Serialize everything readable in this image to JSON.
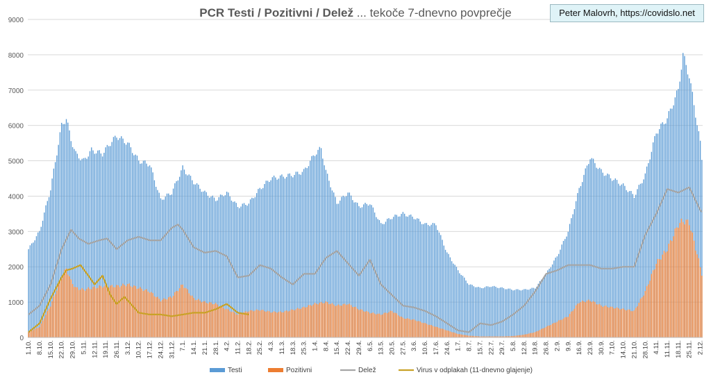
{
  "credit": "Peter Malovrh, https://covidslo.net",
  "chart_data": {
    "type": "bar",
    "title_bold": "PCR Testi / Pozitivni / Delež",
    "title_rest": " ... tekoče 7-dnevno povprečje",
    "xlabel": "",
    "ylabel": "",
    "ylim": [
      0,
      9000
    ],
    "y_ticks": [
      0,
      1000,
      2000,
      3000,
      4000,
      5000,
      6000,
      7000,
      8000,
      9000
    ],
    "x_tick_labels": [
      "1.10.",
      "8.10.",
      "15.10.",
      "22.10.",
      "29.10.",
      "5.11.",
      "12.11.",
      "19.11.",
      "26.11.",
      "3.12.",
      "10.12.",
      "17.12.",
      "24.12.",
      "31.12.",
      "7.1.",
      "14.1.",
      "21.1.",
      "28.1.",
      "4.2.",
      "11.2.",
      "18.2.",
      "25.2.",
      "4.3.",
      "11.3.",
      "18.3.",
      "25.3.",
      "1.4.",
      "8.4.",
      "15.4.",
      "22.4.",
      "29.4.",
      "6.5.",
      "13.5.",
      "20.5.",
      "27.5.",
      "3.6.",
      "10.6.",
      "17.6.",
      "24.6.",
      "1.7.",
      "8.7.",
      "15.7.",
      "22.7.",
      "29.7.",
      "5.8.",
      "12.8.",
      "19.8.",
      "26.8.",
      "2.9.",
      "9.9.",
      "16.9.",
      "23.9.",
      "30.9.",
      "7.10.",
      "14.10.",
      "21.10.",
      "28.10.",
      "4.11.",
      "11.11.",
      "18.11.",
      "25.11.",
      "2.12."
    ],
    "grid": true,
    "legend_position": "bottom",
    "days": 429,
    "series": [
      {
        "name": "Testi",
        "kind": "bar",
        "color": "#5b9bd5",
        "keypoints": [
          [
            0,
            2500
          ],
          [
            7,
            3000
          ],
          [
            14,
            4200
          ],
          [
            21,
            6000
          ],
          [
            24,
            6200
          ],
          [
            27,
            5600
          ],
          [
            30,
            5200
          ],
          [
            35,
            5000
          ],
          [
            40,
            5300
          ],
          [
            47,
            5200
          ],
          [
            52,
            5500
          ],
          [
            56,
            5700
          ],
          [
            63,
            5500
          ],
          [
            70,
            5000
          ],
          [
            77,
            4900
          ],
          [
            84,
            3900
          ],
          [
            91,
            4100
          ],
          [
            98,
            4800
          ],
          [
            105,
            4400
          ],
          [
            112,
            4100
          ],
          [
            119,
            3900
          ],
          [
            126,
            4100
          ],
          [
            133,
            3700
          ],
          [
            140,
            3800
          ],
          [
            147,
            4200
          ],
          [
            154,
            4500
          ],
          [
            161,
            4550
          ],
          [
            168,
            4600
          ],
          [
            175,
            4700
          ],
          [
            182,
            5200
          ],
          [
            186,
            5350
          ],
          [
            189,
            4700
          ],
          [
            196,
            3800
          ],
          [
            203,
            4100
          ],
          [
            210,
            3700
          ],
          [
            217,
            3800
          ],
          [
            224,
            3200
          ],
          [
            231,
            3400
          ],
          [
            238,
            3500
          ],
          [
            245,
            3400
          ],
          [
            252,
            3200
          ],
          [
            259,
            3200
          ],
          [
            266,
            2400
          ],
          [
            273,
            1900
          ],
          [
            280,
            1500
          ],
          [
            287,
            1400
          ],
          [
            294,
            1450
          ],
          [
            301,
            1400
          ],
          [
            308,
            1350
          ],
          [
            315,
            1350
          ],
          [
            322,
            1400
          ],
          [
            329,
            1800
          ],
          [
            336,
            2300
          ],
          [
            343,
            3000
          ],
          [
            350,
            4200
          ],
          [
            357,
            5100
          ],
          [
            364,
            4700
          ],
          [
            371,
            4500
          ],
          [
            378,
            4300
          ],
          [
            385,
            4000
          ],
          [
            392,
            4600
          ],
          [
            399,
            5800
          ],
          [
            406,
            6200
          ],
          [
            413,
            7000
          ],
          [
            416,
            8000
          ],
          [
            420,
            7400
          ],
          [
            427,
            5500
          ],
          [
            428,
            5050
          ]
        ]
      },
      {
        "name": "Pozitivni",
        "kind": "bar",
        "color": "#ed7d31",
        "keypoints": [
          [
            0,
            150
          ],
          [
            7,
            300
          ],
          [
            14,
            900
          ],
          [
            21,
            1700
          ],
          [
            24,
            1950
          ],
          [
            27,
            1600
          ],
          [
            30,
            1400
          ],
          [
            35,
            1350
          ],
          [
            40,
            1400
          ],
          [
            47,
            1450
          ],
          [
            56,
            1450
          ],
          [
            63,
            1500
          ],
          [
            70,
            1400
          ],
          [
            77,
            1300
          ],
          [
            84,
            1050
          ],
          [
            91,
            1150
          ],
          [
            98,
            1500
          ],
          [
            105,
            1100
          ],
          [
            112,
            1000
          ],
          [
            119,
            950
          ],
          [
            126,
            800
          ],
          [
            133,
            650
          ],
          [
            140,
            750
          ],
          [
            147,
            780
          ],
          [
            154,
            720
          ],
          [
            161,
            720
          ],
          [
            168,
            780
          ],
          [
            175,
            850
          ],
          [
            182,
            950
          ],
          [
            189,
            1000
          ],
          [
            196,
            900
          ],
          [
            203,
            950
          ],
          [
            210,
            800
          ],
          [
            217,
            700
          ],
          [
            224,
            650
          ],
          [
            231,
            750
          ],
          [
            238,
            550
          ],
          [
            245,
            500
          ],
          [
            252,
            400
          ],
          [
            259,
            300
          ],
          [
            266,
            200
          ],
          [
            273,
            100
          ],
          [
            280,
            50
          ],
          [
            287,
            30
          ],
          [
            294,
            30
          ],
          [
            301,
            30
          ],
          [
            308,
            40
          ],
          [
            315,
            80
          ],
          [
            322,
            150
          ],
          [
            329,
            300
          ],
          [
            336,
            450
          ],
          [
            343,
            600
          ],
          [
            350,
            1000
          ],
          [
            357,
            1050
          ],
          [
            364,
            900
          ],
          [
            371,
            850
          ],
          [
            378,
            800
          ],
          [
            385,
            750
          ],
          [
            392,
            1300
          ],
          [
            399,
            2100
          ],
          [
            406,
            2500
          ],
          [
            413,
            3200
          ],
          [
            416,
            3300
          ],
          [
            420,
            3250
          ],
          [
            427,
            2000
          ],
          [
            428,
            1800
          ]
        ]
      },
      {
        "name": "Delež",
        "kind": "line",
        "color": "#a5a5a5",
        "scale_note": "odstotek × 100",
        "keypoints": [
          [
            0,
            650
          ],
          [
            7,
            900
          ],
          [
            14,
            1500
          ],
          [
            21,
            2500
          ],
          [
            27,
            3050
          ],
          [
            32,
            2800
          ],
          [
            38,
            2650
          ],
          [
            45,
            2750
          ],
          [
            50,
            2800
          ],
          [
            56,
            2500
          ],
          [
            63,
            2750
          ],
          [
            70,
            2850
          ],
          [
            77,
            2750
          ],
          [
            84,
            2750
          ],
          [
            91,
            3100
          ],
          [
            95,
            3200
          ],
          [
            98,
            3050
          ],
          [
            105,
            2550
          ],
          [
            112,
            2400
          ],
          [
            119,
            2450
          ],
          [
            126,
            2300
          ],
          [
            133,
            1700
          ],
          [
            140,
            1750
          ],
          [
            147,
            2050
          ],
          [
            154,
            1950
          ],
          [
            161,
            1700
          ],
          [
            168,
            1500
          ],
          [
            175,
            1800
          ],
          [
            182,
            1800
          ],
          [
            189,
            2250
          ],
          [
            196,
            2450
          ],
          [
            203,
            2100
          ],
          [
            210,
            1750
          ],
          [
            217,
            2200
          ],
          [
            224,
            1500
          ],
          [
            231,
            1200
          ],
          [
            238,
            900
          ],
          [
            245,
            850
          ],
          [
            252,
            750
          ],
          [
            259,
            600
          ],
          [
            266,
            400
          ],
          [
            273,
            200
          ],
          [
            280,
            150
          ],
          [
            287,
            400
          ],
          [
            294,
            350
          ],
          [
            301,
            450
          ],
          [
            308,
            650
          ],
          [
            315,
            900
          ],
          [
            322,
            1300
          ],
          [
            329,
            1800
          ],
          [
            336,
            1900
          ],
          [
            343,
            2050
          ],
          [
            350,
            2050
          ],
          [
            357,
            2050
          ],
          [
            364,
            1950
          ],
          [
            371,
            1950
          ],
          [
            378,
            2000
          ],
          [
            385,
            2000
          ],
          [
            392,
            2900
          ],
          [
            399,
            3500
          ],
          [
            406,
            4200
          ],
          [
            413,
            4100
          ],
          [
            420,
            4250
          ],
          [
            427,
            3600
          ],
          [
            428,
            3550
          ]
        ]
      },
      {
        "name": "Virus v odplakah (11-dnevno glajenje)",
        "kind": "line",
        "color": "#c9a227",
        "keypoints": [
          [
            0,
            150
          ],
          [
            7,
            400
          ],
          [
            14,
            1100
          ],
          [
            21,
            1700
          ],
          [
            24,
            1900
          ],
          [
            28,
            1950
          ],
          [
            33,
            2050
          ],
          [
            38,
            1750
          ],
          [
            42,
            1500
          ],
          [
            47,
            1750
          ],
          [
            52,
            1200
          ],
          [
            56,
            950
          ],
          [
            61,
            1150
          ],
          [
            66,
            900
          ],
          [
            70,
            700
          ],
          [
            77,
            650
          ],
          [
            84,
            650
          ],
          [
            91,
            600
          ],
          [
            98,
            650
          ],
          [
            105,
            700
          ],
          [
            112,
            700
          ],
          [
            119,
            800
          ],
          [
            126,
            950
          ],
          [
            133,
            700
          ],
          [
            140,
            650
          ]
        ]
      }
    ]
  }
}
